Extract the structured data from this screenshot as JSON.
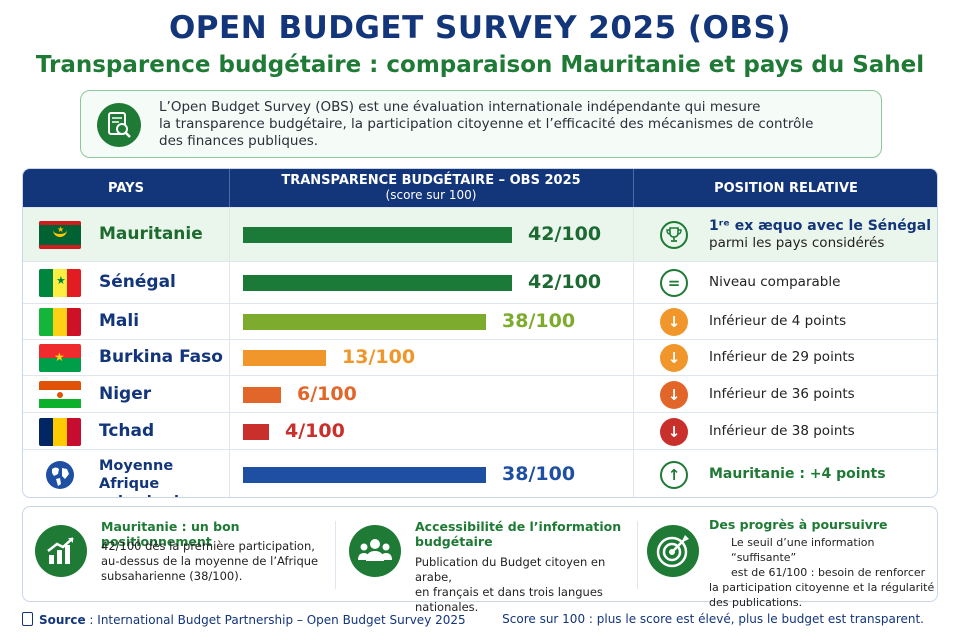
{
  "title": "OPEN BUDGET SURVEY 2025 (OBS)",
  "subtitle": "Transparence budgétaire : comparaison Mauritanie et pays du Sahel",
  "intro": {
    "lines": [
      "L’Open Budget Survey (OBS) est une évaluation internationale indépendante qui mesure",
      "la transparence budgétaire, la participation citoyenne et l’efficacité des mécanismes de contrôle",
      "des finances publiques."
    ],
    "icon": "magnifier-document-icon"
  },
  "table": {
    "headers": {
      "country": "PAYS",
      "score": "TRANSPARENCE BUDGÉTAIRE – OBS 2025",
      "score_sub": "(score sur 100)",
      "position": "POSITION RELATIVE"
    }
  },
  "chart_data": {
    "type": "bar",
    "orientation": "horizontal",
    "categories": [
      "Mauritanie",
      "Sénégal",
      "Mali",
      "Burkina Faso",
      "Niger",
      "Tchad",
      "Moyenne Afrique subsaharienne"
    ],
    "values": [
      42,
      42,
      38,
      13,
      6,
      4,
      38
    ],
    "score_labels": [
      "42/100",
      "42/100",
      "38/100",
      "13/100",
      "6/100",
      "4/100",
      "38/100"
    ],
    "xlim": [
      0,
      100
    ],
    "colors": [
      "#1c7a38",
      "#1c7a38",
      "#7cab2e",
      "#f0962a",
      "#e2662a",
      "#c9302c",
      "#1f4fa3"
    ],
    "title": "TRANSPARENCE BUDGÉTAIRE – OBS 2025",
    "xlabel": "(score sur 100)"
  },
  "positions": [
    {
      "icon": "trophy-icon",
      "line1": "1ʳᵉ ex æquo avec le Sénégal",
      "line2": "parmi les pays considérés",
      "color": "#1e7a35"
    },
    {
      "icon": "equals-icon",
      "line1": "Niveau comparable",
      "line2": "",
      "color": "#1e7a35"
    },
    {
      "icon": "arrow-down-icon",
      "line1": "Inférieur de 4 points",
      "line2": "",
      "color": "#f0962a"
    },
    {
      "icon": "arrow-down-icon",
      "line1": "Inférieur de 29 points",
      "line2": "",
      "color": "#f0962a"
    },
    {
      "icon": "arrow-down-icon",
      "line1": "Inférieur de 36 points",
      "line2": "",
      "color": "#e2662a"
    },
    {
      "icon": "arrow-down-icon",
      "line1": "Inférieur de 38 points",
      "line2": "",
      "color": "#c9302c"
    },
    {
      "icon": "arrow-up-icon",
      "line1": "Mauritanie : +4 points",
      "line2": "",
      "color": "#1e7a35"
    }
  ],
  "cards": [
    {
      "icon": "growth-chart-icon",
      "title": "Mauritanie : un bon positionnement",
      "lines": [
        "42/100 dès la première participation,",
        "au-dessus de la moyenne de l’Afrique",
        "subsaharienne (38/100)."
      ]
    },
    {
      "icon": "people-group-icon",
      "title": "Accessibilité de l’information budgétaire",
      "lines": [
        "Publication du Budget citoyen en arabe,",
        "en français et dans trois langues nationales."
      ]
    },
    {
      "icon": "target-icon",
      "title": "Des progrès à poursuivre",
      "lines": [
        "Le seuil d’une information “suffisante”",
        "est de 61/100 : besoin de renforcer",
        "la participation citoyenne et la régularité",
        "des publications."
      ]
    }
  ],
  "footer": {
    "source_label": "Source",
    "source_text": " : International Budget Partnership – Open Budget Survey 2025",
    "note": "Score sur 100 : plus le score est élevé, plus le budget est transparent."
  }
}
